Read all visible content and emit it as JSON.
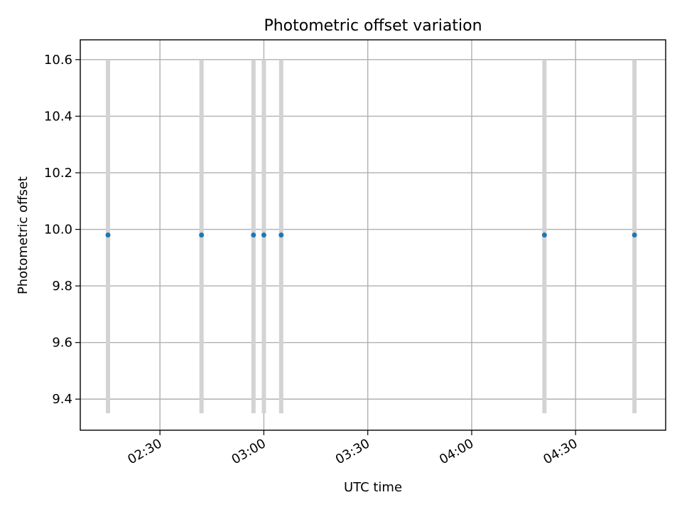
{
  "chart_data": {
    "type": "scatter",
    "title": "Photometric offset variation",
    "xlabel": "UTC time",
    "ylabel": "Photometric offset",
    "x_ticks": [
      "02:30",
      "03:00",
      "03:30",
      "04:00",
      "04:30"
    ],
    "x_tick_times": [
      "02:30",
      "03:00",
      "03:30",
      "04:00",
      "04:30"
    ],
    "xlim": [
      "02:07",
      "04:56"
    ],
    "y_ticks": [
      "9.4",
      "9.6",
      "9.8",
      "10.0",
      "10.2",
      "10.4",
      "10.6"
    ],
    "ylim": [
      9.29,
      10.67
    ],
    "grid": true,
    "point_color": "#1f77b4",
    "errorbar_color": "#d3d3d3",
    "points": [
      {
        "x": "02:15",
        "y": 9.98,
        "yerr_low": 9.35,
        "yerr_high": 10.6
      },
      {
        "x": "02:42",
        "y": 9.98,
        "yerr_low": 9.35,
        "yerr_high": 10.6
      },
      {
        "x": "02:57",
        "y": 9.98,
        "yerr_low": 9.35,
        "yerr_high": 10.6
      },
      {
        "x": "03:00",
        "y": 9.98,
        "yerr_low": 9.35,
        "yerr_high": 10.6
      },
      {
        "x": "03:05",
        "y": 9.98,
        "yerr_low": 9.35,
        "yerr_high": 10.6
      },
      {
        "x": "04:21",
        "y": 9.98,
        "yerr_low": 9.35,
        "yerr_high": 10.6
      },
      {
        "x": "04:47",
        "y": 9.98,
        "yerr_low": 9.35,
        "yerr_high": 10.6
      }
    ]
  }
}
